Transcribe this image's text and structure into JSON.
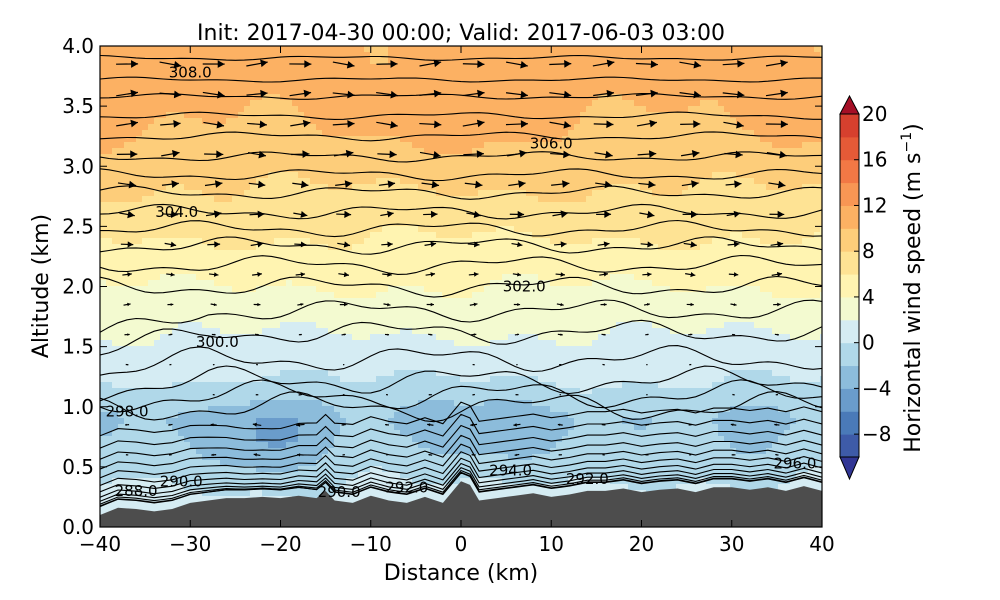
{
  "chart_data": {
    "type": "heatmap",
    "title": "Init: 2017-04-30 00:00; Valid: 2017-06-03 03:00",
    "xlabel": "Distance (km)",
    "ylabel": "Altitude (km)",
    "xlim": [
      -40,
      40
    ],
    "ylim": [
      0.0,
      4.0
    ],
    "x_ticks": [
      -40,
      -30,
      -20,
      -10,
      0,
      10,
      20,
      30,
      40
    ],
    "x_tick_labels": [
      "−40",
      "−30",
      "−20",
      "−10",
      "0",
      "10",
      "20",
      "30",
      "40"
    ],
    "y_ticks": [
      0.0,
      0.5,
      1.0,
      1.5,
      2.0,
      2.5,
      3.0,
      3.5,
      4.0
    ],
    "y_tick_labels": [
      "0.0",
      "0.5",
      "1.0",
      "1.5",
      "2.0",
      "2.5",
      "3.0",
      "3.5",
      "4.0"
    ],
    "colorbar": {
      "label_main": "Horizontal wind speed (m s",
      "label_exp": "−1",
      "label_close": ")",
      "min": -10,
      "max": 20,
      "step": 2,
      "ticks": [
        -8,
        -4,
        0,
        4,
        8,
        12,
        16,
        20
      ],
      "tick_labels": [
        "−8",
        "−4",
        "0",
        "4",
        "8",
        "12",
        "16",
        "20"
      ],
      "extend": "both",
      "colors": [
        "#313695",
        "#3e5ba8",
        "#4a7ab8",
        "#6a9ccb",
        "#8cbcdb",
        "#b0d8e9",
        "#d5ecf3",
        "#f3fad0",
        "#fff4b1",
        "#fee394",
        "#fdcd7a",
        "#fcb163",
        "#f89654",
        "#f27845",
        "#e55a37",
        "#d6402e",
        "#c02729",
        "#a50f26"
      ]
    },
    "terrain": {
      "x": [
        -40,
        -38,
        -36,
        -34,
        -32,
        -30,
        -28,
        -26,
        -24,
        -22,
        -20,
        -18,
        -16,
        -15,
        -14,
        -12,
        -10,
        -8,
        -6,
        -4,
        -2,
        0,
        1,
        2,
        4,
        6,
        8,
        10,
        12,
        14,
        16,
        18,
        20,
        22,
        24,
        26,
        28,
        30,
        32,
        34,
        36,
        38,
        40
      ],
      "height": [
        0.1,
        0.16,
        0.15,
        0.13,
        0.15,
        0.2,
        0.22,
        0.24,
        0.24,
        0.25,
        0.24,
        0.26,
        0.24,
        0.3,
        0.22,
        0.2,
        0.26,
        0.22,
        0.2,
        0.25,
        0.2,
        0.38,
        0.35,
        0.22,
        0.24,
        0.26,
        0.28,
        0.25,
        0.27,
        0.3,
        0.3,
        0.32,
        0.29,
        0.31,
        0.32,
        0.29,
        0.33,
        0.33,
        0.31,
        0.33,
        0.3,
        0.34,
        0.3
      ],
      "color": "#4d4d4d"
    },
    "wind_field": {
      "profile_altitude_km": [
        0.0,
        0.3,
        0.6,
        0.9,
        1.2,
        1.5,
        1.8,
        2.1,
        2.4,
        2.7,
        3.0,
        3.3,
        3.6,
        4.0
      ],
      "profile_speed_ms": [
        1.0,
        0.5,
        -1.0,
        -2.0,
        0.0,
        1.5,
        3.0,
        4.5,
        6.0,
        7.5,
        8.8,
        9.5,
        10.0,
        10.5
      ],
      "min_speed_ms": -6.5,
      "max_speed_ms": 11.0
    },
    "theta_contours": [
      {
        "label": "288.0",
        "level": 288.0,
        "labeled": true
      },
      {
        "label": "290.0",
        "level": 290.0,
        "labeled": true
      },
      {
        "label": "292.0",
        "level": 292.0,
        "labeled": true
      },
      {
        "label": "294.0",
        "level": 294.0,
        "labeled": true
      },
      {
        "label": "296.0",
        "level": 296.0,
        "labeled": true
      },
      {
        "label": "298.0",
        "level": 298.0,
        "labeled": true
      },
      {
        "label": "300.0",
        "level": 300.0,
        "labeled": true
      },
      {
        "label": "302.0",
        "level": 302.0,
        "labeled": true
      },
      {
        "label": "304.0",
        "level": 304.0,
        "labeled": true
      },
      {
        "label": "306.0",
        "level": 306.0,
        "labeled": true
      },
      {
        "label": "308.0",
        "level": 308.0,
        "labeled": true
      }
    ],
    "contour_labels_shown": [
      {
        "text": "308.0",
        "x": -30,
        "y": 3.78
      },
      {
        "text": "306.0",
        "x": 10,
        "y": 3.19
      },
      {
        "text": "304.0",
        "x": -31.5,
        "y": 2.62
      },
      {
        "text": "302.0",
        "x": 7,
        "y": 2.0
      },
      {
        "text": "300.0",
        "x": -27,
        "y": 1.54
      },
      {
        "text": "298.0",
        "x": -37,
        "y": 0.96
      },
      {
        "text": "296.0",
        "x": 37,
        "y": 0.53
      },
      {
        "text": "294.0",
        "x": 5.5,
        "y": 0.47
      },
      {
        "text": "292.0",
        "x": 14,
        "y": 0.4
      },
      {
        "text": "292.0",
        "x": -6,
        "y": 0.33
      },
      {
        "text": "290.0",
        "x": -13.5,
        "y": 0.29
      },
      {
        "text": "290.0",
        "x": -31,
        "y": 0.38
      },
      {
        "text": "288.0",
        "x": -36,
        "y": 0.3
      }
    ]
  }
}
